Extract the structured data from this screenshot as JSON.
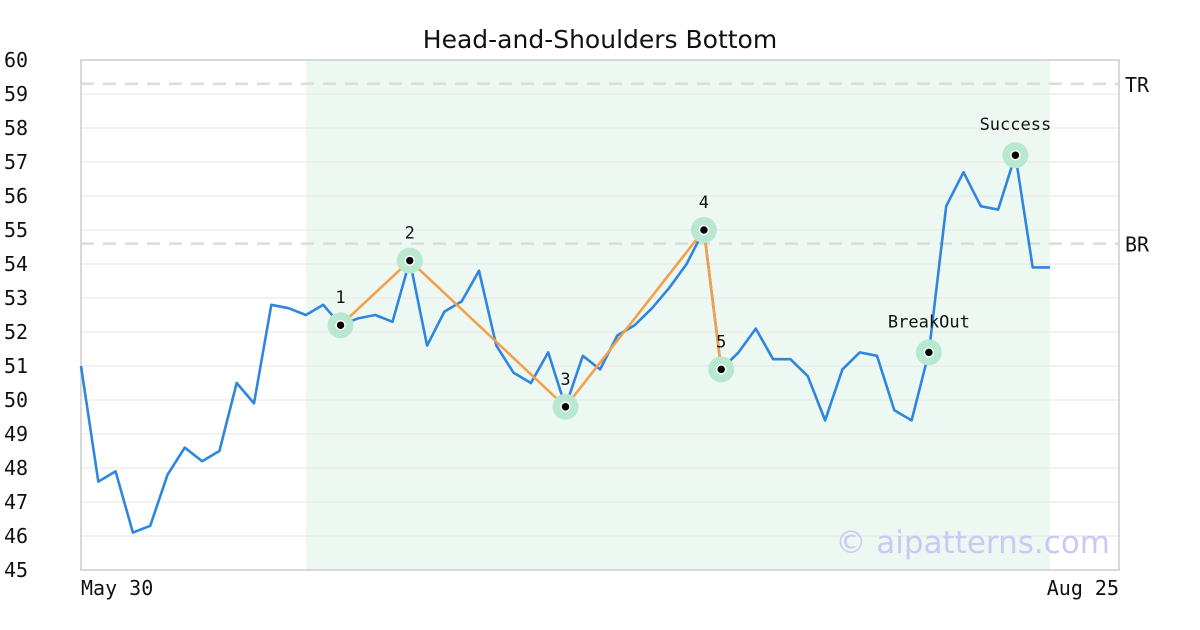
{
  "chart_data": {
    "type": "line",
    "title": "Head-and-Shoulders Bottom",
    "xlabel": "",
    "ylabel": "",
    "ylim": [
      45,
      60
    ],
    "yticks": [
      45,
      46,
      47,
      48,
      49,
      50,
      51,
      52,
      53,
      54,
      55,
      56,
      57,
      58,
      59,
      60
    ],
    "x_tick_labels": [
      "May 30",
      "Aug 25"
    ],
    "grid": "horizontal",
    "series_color": "#2e86de",
    "pattern_color": "#f4a04a",
    "marker_color": "#b8e8d0",
    "highlight_color": "#eef8f3",
    "values": [
      51.0,
      47.6,
      47.9,
      46.1,
      46.3,
      47.8,
      48.6,
      48.2,
      48.5,
      50.5,
      49.9,
      52.8,
      52.7,
      52.5,
      52.8,
      52.2,
      52.4,
      52.5,
      52.3,
      54.1,
      51.6,
      52.6,
      52.9,
      53.8,
      51.6,
      50.8,
      50.5,
      51.4,
      49.8,
      51.3,
      50.9,
      51.9,
      52.2,
      52.7,
      53.3,
      54.0,
      55.0,
      50.9,
      51.4,
      52.1,
      51.2,
      51.2,
      50.7,
      49.4,
      50.9,
      51.4,
      51.3,
      49.7,
      49.4,
      51.4,
      55.7,
      56.7,
      55.7,
      55.6,
      57.2,
      53.9,
      53.9
    ],
    "highlight_range": [
      13,
      56
    ],
    "pattern_points": [
      {
        "label": "1",
        "index": 15,
        "value": 52.2
      },
      {
        "label": "2",
        "index": 19,
        "value": 54.1
      },
      {
        "label": "3",
        "index": 28,
        "value": 49.8
      },
      {
        "label": "4",
        "index": 36,
        "value": 55.0
      },
      {
        "label": "5",
        "index": 37,
        "value": 50.9
      }
    ],
    "event_points": [
      {
        "label": "BreakOut",
        "index": 49,
        "value": 51.4
      },
      {
        "label": "Success",
        "index": 54,
        "value": 57.2
      }
    ],
    "reference_lines": [
      {
        "label": "TR",
        "value": 59.3
      },
      {
        "label": "BR",
        "value": 54.6
      }
    ],
    "watermark": "© aipatterns.com"
  }
}
